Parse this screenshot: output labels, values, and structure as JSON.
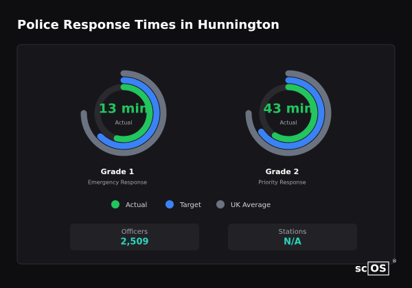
{
  "title": "Police Response Times in Hunnington",
  "gauges": [
    {
      "title": "Grade 1",
      "subtitle": "Emergency Response",
      "values": [
        13,
        15,
        18
      ],
      "value_label": "13 min",
      "caption": "Actual"
    },
    {
      "title": "Grade 2",
      "subtitle": "Priority Response",
      "values": [
        43,
        48,
        55
      ],
      "value_label": "43 min",
      "caption": "Actual"
    }
  ],
  "legend": [
    {
      "name": "Actual",
      "color": "#22c55e"
    },
    {
      "name": "Target",
      "color": "#3b82f6"
    },
    {
      "name": "UK Average",
      "color": "#6b7280"
    }
  ],
  "stats": [
    {
      "label": "Officers",
      "value": "2,509"
    },
    {
      "label": "Stations",
      "value": "N/A"
    }
  ],
  "logo": {
    "prefix": "sc",
    "boxed": "OS",
    "mark": "®"
  }
}
